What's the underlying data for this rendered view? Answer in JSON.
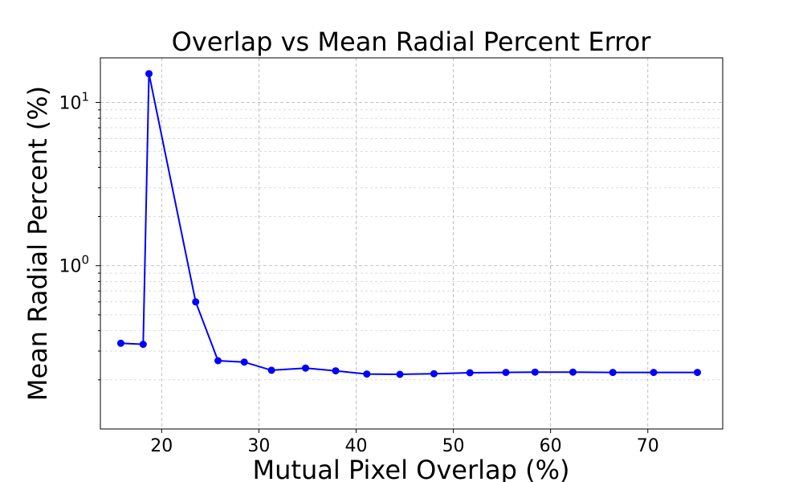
{
  "chart_data": {
    "type": "line",
    "title": "Overlap vs Mean Radial Percent Error",
    "xlabel": "Mutual Pixel Overlap (%)",
    "ylabel": "Mean Radial Percent (%)",
    "yscale": "log",
    "xlim": [
      13.7,
      77.7
    ],
    "ylim": [
      0.1,
      10
    ],
    "grid": true,
    "x_ticks": [
      20,
      30,
      40,
      50,
      60,
      70
    ],
    "y_ticks": [
      {
        "base": "10",
        "exp": "0",
        "value": 1
      },
      {
        "base": "10",
        "exp": "1",
        "value": 10
      }
    ],
    "series": [
      {
        "color": "#0000ff",
        "marker": "circle",
        "points": [
          {
            "x": 15.8,
            "y": 0.335
          },
          {
            "x": 18.1,
            "y": 0.33
          },
          {
            "x": 18.7,
            "y": 15.0
          },
          {
            "x": 23.5,
            "y": 0.6
          },
          {
            "x": 25.8,
            "y": 0.262
          },
          {
            "x": 28.5,
            "y": 0.257
          },
          {
            "x": 31.3,
            "y": 0.229
          },
          {
            "x": 34.8,
            "y": 0.236
          },
          {
            "x": 37.9,
            "y": 0.227
          },
          {
            "x": 41.1,
            "y": 0.217
          },
          {
            "x": 44.5,
            "y": 0.216
          },
          {
            "x": 48.0,
            "y": 0.218
          },
          {
            "x": 51.7,
            "y": 0.221
          },
          {
            "x": 55.4,
            "y": 0.222
          },
          {
            "x": 58.4,
            "y": 0.223
          },
          {
            "x": 62.3,
            "y": 0.223
          },
          {
            "x": 66.4,
            "y": 0.222
          },
          {
            "x": 70.6,
            "y": 0.222
          },
          {
            "x": 75.1,
            "y": 0.222
          }
        ]
      }
    ]
  }
}
